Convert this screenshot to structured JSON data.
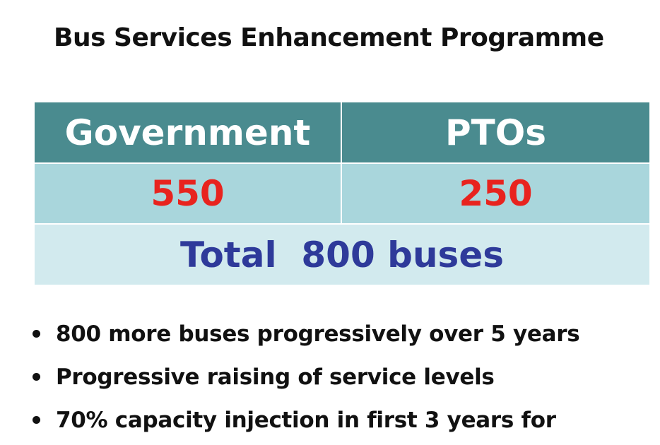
{
  "title": "Bus Services Enhancement Programme",
  "table": {
    "headers": [
      "Government",
      "PTOs"
    ],
    "values": [
      "550",
      "250"
    ],
    "total": "Total  800 buses"
  },
  "bullets": [
    "800 more buses progressively over 5 years",
    "Progressive raising of service levels",
    "70% capacity injection in first 3 years for"
  ],
  "colors": {
    "header_bg": "#4a8b8f",
    "value_bg": "#a9d6dc",
    "total_bg": "#d2eaee",
    "value_text": "#e8231e",
    "total_text": "#2e3a9a"
  }
}
